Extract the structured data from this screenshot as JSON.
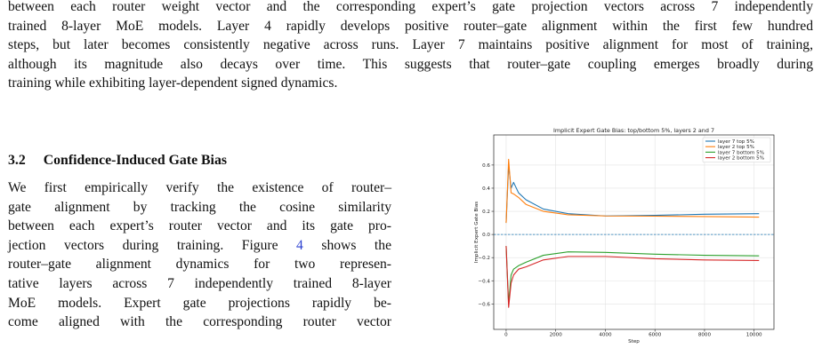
{
  "top_paragraph": [
    "between each router weight vector and the corresponding expert’s gate projection vectors across 7 independently",
    "trained 8-layer MoE models. Layer 4 rapidly develops positive router–gate alignment within the first few hundred",
    "steps, but later becomes consistently negative across runs. Layer 7 maintains positive alignment for most of training,",
    "although its magnitude also decays over time. This suggests that router–gate coupling emerges broadly during",
    "training while exhibiting layer-dependent signed dynamics."
  ],
  "section": {
    "number": "3.2",
    "title": "Confidence-Induced Gate Bias"
  },
  "left_paragraph": [
    "We first empirically verify the existence of router–",
    "gate alignment by tracking the cosine similarity",
    "between each expert’s router vector and its gate pro-",
    [
      "jection vectors during training. Figure ",
      "4",
      " shows the"
    ],
    "router–gate alignment dynamics for two represen-",
    "tative layers across 7 independently trained 8-layer",
    "MoE models. Expert gate projections rapidly be-",
    "come aligned with the corresponding router vector"
  ],
  "chart_data": {
    "type": "line",
    "title": "Implicit Expert Gate Bias: top/bottom 5%, layers 2 and 7",
    "x_label": "Step",
    "y_label": "Implicit Expert Gate Bias",
    "x": [
      0,
      100,
      200,
      300,
      500,
      800,
      1500,
      2500,
      4000,
      6000,
      8000,
      10200
    ],
    "series": [
      {
        "name": "layer 7 top 5%",
        "color": "#1f77b4",
        "values": [
          0.1,
          0.6,
          0.4,
          0.45,
          0.36,
          0.3,
          0.22,
          0.18,
          0.16,
          0.165,
          0.175,
          0.18
        ]
      },
      {
        "name": "layer 2 top 5%",
        "color": "#ff7f0e",
        "values": [
          0.1,
          0.65,
          0.36,
          0.35,
          0.32,
          0.26,
          0.2,
          0.17,
          0.16,
          0.158,
          0.155,
          0.15
        ]
      },
      {
        "name": "layer 7 bottom 5%",
        "color": "#2ca02c",
        "values": [
          -0.1,
          -0.6,
          -0.35,
          -0.3,
          -0.27,
          -0.24,
          -0.18,
          -0.15,
          -0.155,
          -0.17,
          -0.18,
          -0.185
        ]
      },
      {
        "name": "layer 2 bottom 5%",
        "color": "#d62728",
        "values": [
          -0.1,
          -0.63,
          -0.42,
          -0.35,
          -0.3,
          -0.28,
          -0.22,
          -0.19,
          -0.19,
          -0.21,
          -0.22,
          -0.225
        ]
      }
    ],
    "hline": 0,
    "hline_color": "#1f77b4",
    "xlim": [
      -500,
      10800
    ],
    "ylim": [
      -0.82,
      0.86
    ],
    "xticks": [
      0,
      2000,
      4000,
      6000,
      8000,
      10000
    ],
    "yticks": [
      {
        "value": -0.6,
        "label": "−0.6"
      },
      {
        "value": -0.4,
        "label": "−0.4"
      },
      {
        "value": -0.2,
        "label": "−0.2"
      },
      {
        "value": 0,
        "label": "0.0"
      },
      {
        "value": 0.2,
        "label": "0.2"
      },
      {
        "value": 0.4,
        "label": "0.4"
      },
      {
        "value": 0.6,
        "label": "0.6"
      }
    ],
    "grid": true,
    "legend": "upper right"
  }
}
